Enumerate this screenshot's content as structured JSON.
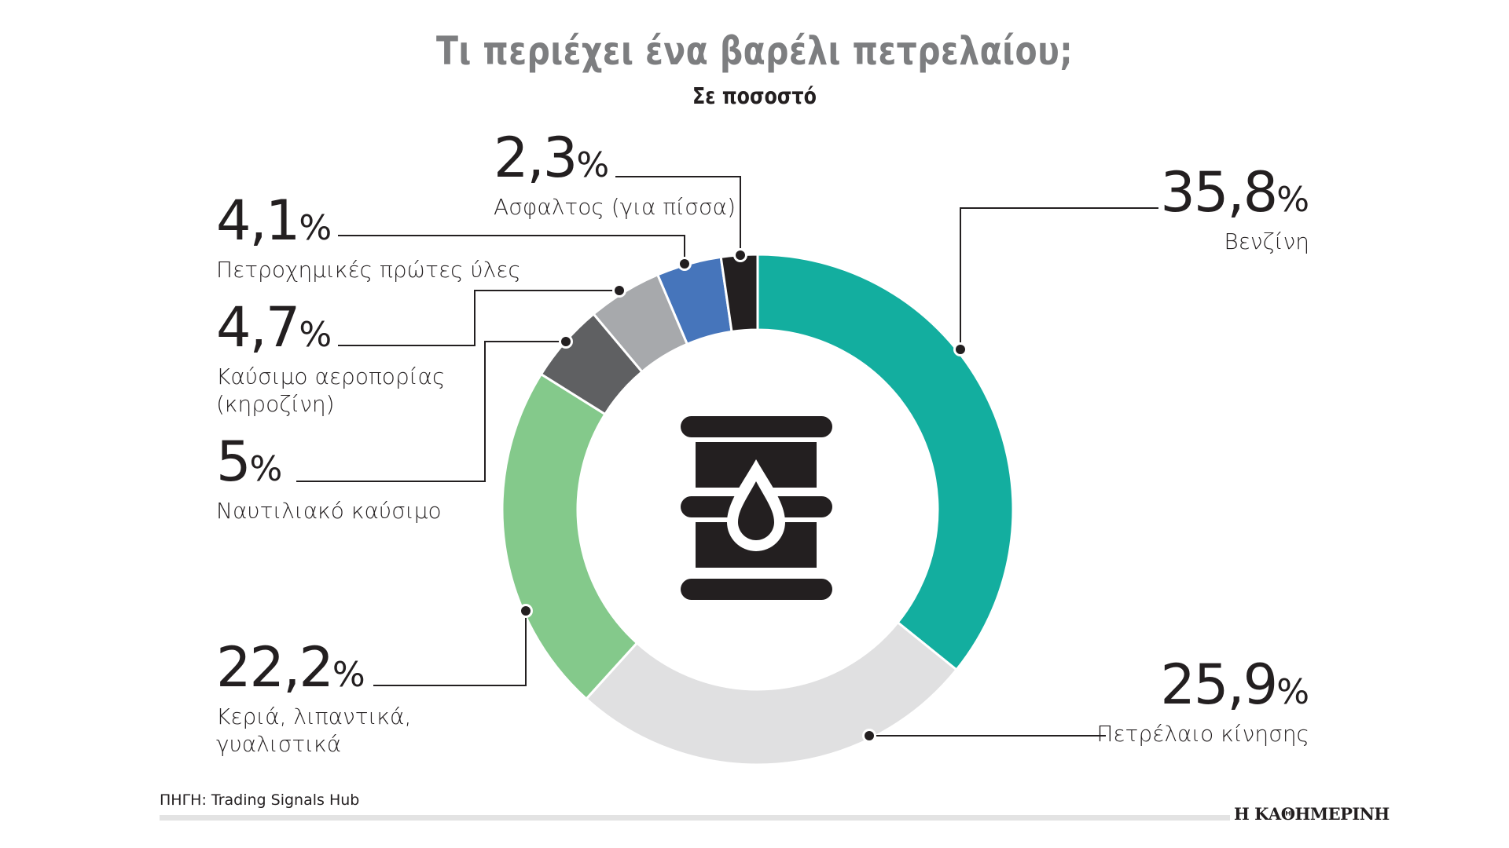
{
  "header": {
    "title": "Τι περιέχει ένα βαρέλι πετρελαίου;",
    "subtitle": "Σε ποσοστό"
  },
  "labels": [
    {
      "id": "benzine",
      "pct": "35,8",
      "sign": "%",
      "name_lines": [
        "Βενζίνη"
      ]
    },
    {
      "id": "diesel",
      "pct": "25,9",
      "sign": "%",
      "name_lines": [
        "Πετρέλαιο κίνησης"
      ]
    },
    {
      "id": "waxes",
      "pct": "22,2",
      "sign": "%",
      "name_lines": [
        "Κεριά, λιπαντικά,",
        "γυαλιστικά"
      ]
    },
    {
      "id": "marine",
      "pct": "5",
      "sign": "%",
      "name_lines": [
        "Ναυτιλιακό καύσιμο"
      ]
    },
    {
      "id": "jet",
      "pct": "4,7",
      "sign": "%",
      "name_lines": [
        "Καύσιμο αεροπορίας",
        "(κηροζίνη)"
      ]
    },
    {
      "id": "petrochem",
      "pct": "4,1",
      "sign": "%",
      "name_lines": [
        "Πετροχημικές πρώτες ύλες"
      ]
    },
    {
      "id": "asphalt",
      "pct": "2,3",
      "sign": "%",
      "name_lines": [
        "Ασφαλτος (για πίσσα)"
      ]
    }
  ],
  "footer": {
    "source": "ΠΗΓΗ: Trading Signals Hub",
    "brand": "Η ΚΑΘΗΜΕΡΙΝΗ"
  },
  "icon": "oil-barrel-with-drop-icon",
  "colors": {
    "benzine": "#13ae9f",
    "diesel": "#e0e0e1",
    "waxes": "#84c98b",
    "marine": "#5f6062",
    "jet": "#a7a9ac",
    "petrochem": "#4675bb",
    "asphalt": "#231f20",
    "title": "#7d7e80",
    "text": "#231f20"
  },
  "chart_data": {
    "type": "pie",
    "variant": "donut",
    "title": "Τι περιέχει ένα βαρέλι πετρελαίου;",
    "subtitle": "Σε ποσοστό",
    "unit": "%",
    "categories": [
      "Βενζίνη",
      "Πετρέλαιο κίνησης",
      "Κεριά, λιπαντικά, γυαλιστικά",
      "Ναυτιλιακό καύσιμο",
      "Καύσιμο αεροπορίας (κηροζίνη)",
      "Πετροχημικές πρώτες ύλες",
      "Ασφαλτος (για πίσσα)"
    ],
    "values": [
      35.8,
      25.9,
      22.2,
      5,
      4.7,
      4.1,
      2.3
    ],
    "colors": [
      "#13ae9f",
      "#e0e0e1",
      "#84c98b",
      "#5f6062",
      "#a7a9ac",
      "#4675bb",
      "#231f20"
    ],
    "start_angle_deg": 0,
    "direction": "clockwise",
    "source": "ΠΗΓΗ: Trading Signals Hub",
    "legend": "callout labels"
  }
}
